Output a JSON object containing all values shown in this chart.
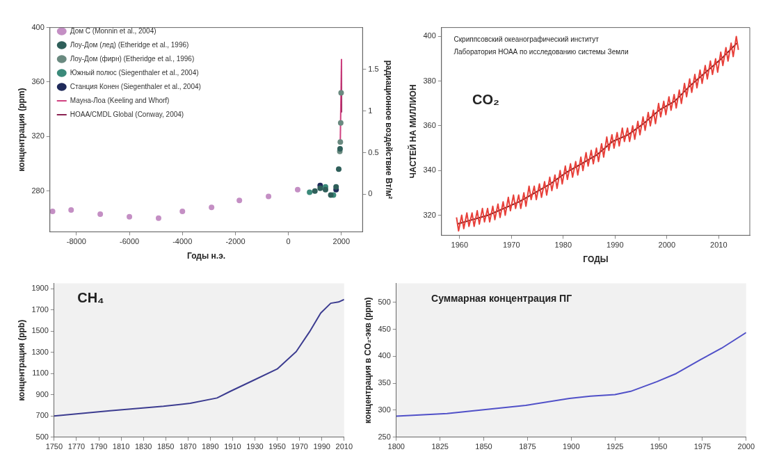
{
  "chart_data": [
    {
      "type": "line",
      "xlabel": "Годы н.э.",
      "ylabel": "концентрация (ppm)",
      "y2label": "радиационное воздействие Вт/м²",
      "xlim": [
        -9000,
        2800
      ],
      "xticks": [
        -8000,
        -6000,
        -4000,
        -2000,
        0,
        2000
      ],
      "ylim": [
        250,
        400
      ],
      "yticks": [
        280,
        320,
        360,
        400
      ],
      "y2lim": [
        -0.45,
        2.0
      ],
      "y2ticks": [
        0,
        0.5,
        1,
        1.5
      ],
      "legend": "top left",
      "series": [
        {
          "name": "Дом С (Monnin et al., 2004)",
          "type": "scatter",
          "marker": "circle",
          "color": "#c48fc4",
          "x": [
            -8900,
            -8200,
            -7100,
            -6000,
            -4900,
            -4000,
            -2900,
            -1850,
            -750,
            350
          ],
          "values": [
            265,
            266,
            263,
            261,
            260,
            265,
            268,
            273,
            276,
            281
          ]
        },
        {
          "name": "Лоу-Дом (лед) (Etheridge et al., 1996)",
          "type": "scatter",
          "marker": "circle",
          "color": "#2f5f5a",
          "x": [
            1000,
            1200,
            1400,
            1600,
            1800,
            1900,
            1950
          ],
          "values": [
            280,
            282,
            281,
            277,
            283,
            296,
            311
          ]
        },
        {
          "name": "Лоу-Дом (фирн) (Etheridge et al., 1996)",
          "type": "scatter",
          "marker": "circle",
          "color": "#6a8a80",
          "x": [
            1940,
            1960,
            1975,
            1990
          ],
          "values": [
            309,
            316,
            330,
            352
          ]
        },
        {
          "name": "Южный полюс (Siegenthaler et al., 2004)",
          "type": "scatter",
          "marker": "circle",
          "color": "#3b8a7a",
          "x": [
            800,
            1400,
            1700
          ],
          "values": [
            279,
            283,
            277
          ]
        },
        {
          "name": "Станция Конен (Siegenthaler et al., 2004)",
          "type": "scatter",
          "marker": "circle",
          "color": "#1f2a5a",
          "x": [
            1200,
            1800
          ],
          "values": [
            284,
            281
          ]
        },
        {
          "name": "Мауна-Лоа (Keeling and Whorf)",
          "type": "line",
          "marker": "none",
          "color": "#d04080",
          "x": [
            1958,
            2004
          ],
          "values": [
            315,
            377
          ]
        },
        {
          "name": "HOAA/CMDL Global (Conway, 2004)",
          "type": "line",
          "marker": "none",
          "color": "#8b2252",
          "x": [
            1980,
            2004
          ],
          "values": [
            338,
            376
          ]
        }
      ]
    },
    {
      "type": "line",
      "xlabel": "ГОДЫ",
      "ylabel": "ЧАСТЕЙ НА МИЛЛИОН",
      "xlim": [
        1956.5,
        2016
      ],
      "xticks": [
        1960,
        1970,
        1980,
        1990,
        2000,
        2010
      ],
      "ylim": [
        311,
        404
      ],
      "yticks": [
        320,
        340,
        360,
        380,
        400
      ],
      "annotations": [
        "Скриппсовский океанографический институт",
        "Лаборатория НОАА по исследованию системы Земли",
        "CO₂"
      ],
      "series": [
        {
          "type": "line",
          "marker": "none",
          "color": "#e8403a",
          "x": [
            1959.4,
            1959.8,
            1960.4,
            1960.8,
            1961.4,
            1961.8,
            1962.4,
            1962.8,
            1963.4,
            1963.8,
            1964.4,
            1964.8,
            1965.4,
            1965.8,
            1966.4,
            1966.8,
            1967.4,
            1967.8,
            1968.4,
            1968.8,
            1969.4,
            1969.8,
            1970.4,
            1970.8,
            1971.4,
            1971.8,
            1972.4,
            1972.8,
            1973.4,
            1973.8,
            1974.4,
            1974.8,
            1975.4,
            1975.8,
            1976.4,
            1976.8,
            1977.4,
            1977.8,
            1978.4,
            1978.8,
            1979.4,
            1979.8,
            1980.4,
            1980.8,
            1981.4,
            1981.8,
            1982.4,
            1982.8,
            1983.4,
            1983.8,
            1984.4,
            1984.8,
            1985.4,
            1985.8,
            1986.4,
            1986.8,
            1987.4,
            1987.8,
            1988.4,
            1988.8,
            1989.4,
            1989.8,
            1990.4,
            1990.8,
            1991.4,
            1991.8,
            1992.4,
            1992.8,
            1993.4,
            1993.8,
            1994.4,
            1994.8,
            1995.4,
            1995.8,
            1996.4,
            1996.8,
            1997.4,
            1997.8,
            1998.4,
            1998.8,
            1999.4,
            1999.8,
            2000.4,
            2000.8,
            2001.4,
            2001.8,
            2002.4,
            2002.8,
            2003.4,
            2003.8,
            2004.4,
            2004.8,
            2005.4,
            2005.8,
            2006.4,
            2006.8,
            2007.4,
            2007.8,
            2008.4,
            2008.8,
            2009.4,
            2009.8,
            2010.4,
            2010.8,
            2011.4,
            2011.8,
            2012.4,
            2012.8,
            2013.4,
            2013.8
          ],
          "values": [
            319,
            313,
            320,
            314,
            321,
            315,
            321,
            315,
            322,
            316,
            323,
            317,
            323,
            317,
            324,
            318,
            325,
            319,
            326,
            320,
            328,
            322,
            329,
            323,
            329,
            323,
            330,
            324,
            333,
            327,
            333,
            327,
            334,
            328,
            335,
            329,
            337,
            331,
            338,
            332,
            340,
            334,
            342,
            336,
            343,
            337,
            344,
            338,
            346,
            340,
            348,
            342,
            349,
            343,
            350,
            344,
            352,
            346,
            355,
            349,
            356,
            350,
            357,
            351,
            359,
            353,
            359,
            353,
            360,
            354,
            362,
            356,
            364,
            358,
            366,
            360,
            367,
            361,
            370,
            364,
            371,
            365,
            373,
            367,
            374,
            368,
            376,
            370,
            379,
            373,
            381,
            375,
            383,
            377,
            385,
            379,
            387,
            381,
            389,
            383,
            390,
            384,
            393,
            387,
            395,
            389,
            397,
            391,
            400,
            394
          ]
        },
        {
          "type": "line",
          "marker": "none",
          "color": "#7a1a1a",
          "x": [
            1959.5,
            1962.5,
            1965.5,
            1968.5,
            1971.5,
            1974.5,
            1977.5,
            1980.5,
            1983.5,
            1986.5,
            1989.5,
            1992.5,
            1995.5,
            1998.5,
            2001.5,
            2004.5,
            2007.5,
            2010.5,
            2013.5
          ],
          "values": [
            316,
            318,
            320,
            323,
            326,
            330,
            334,
            339,
            343,
            347,
            353,
            356,
            361,
            367,
            371,
            378,
            384,
            390,
            397
          ]
        }
      ]
    },
    {
      "type": "line",
      "ylabel": "концентрация (ppb)",
      "xlim": [
        1750,
        2010
      ],
      "xticks": [
        1750,
        1770,
        1790,
        1810,
        1830,
        1850,
        1870,
        1890,
        1910,
        1930,
        1950,
        1970,
        1990,
        2010
      ],
      "ylim": [
        500,
        1950
      ],
      "yticks": [
        500,
        700,
        900,
        1100,
        1300,
        1500,
        1700,
        1900
      ],
      "annotations": [
        "CH₄"
      ],
      "series": [
        {
          "type": "line",
          "marker": "none",
          "color": "#3c3c90",
          "x": [
            1750,
            1800,
            1848,
            1872,
            1896,
            1908,
            1929,
            1950,
            1967,
            1979,
            1989,
            1998,
            2005,
            2010
          ],
          "values": [
            700,
            750,
            792,
            820,
            870,
            933,
            1038,
            1143,
            1307,
            1494,
            1670,
            1763,
            1775,
            1798
          ]
        }
      ]
    },
    {
      "type": "line",
      "ylabel": "концентрация в CO₂-экв (ppm)",
      "xlim": [
        1800,
        2000
      ],
      "xticks": [
        1800,
        1825,
        1850,
        1875,
        1900,
        1925,
        1950,
        1975,
        2000
      ],
      "ylim": [
        250,
        535
      ],
      "yticks": [
        250,
        300,
        350,
        400,
        450,
        500
      ],
      "annotations": [
        "Суммарная концентрация ПГ"
      ],
      "series": [
        {
          "type": "line",
          "marker": "none",
          "color": "#5050c8",
          "x": [
            1800,
            1829,
            1850,
            1874,
            1899,
            1911,
            1925,
            1934,
            1949,
            1960,
            1974,
            1986,
            2000
          ],
          "values": [
            289,
            294,
            301,
            309,
            322,
            326,
            329,
            335,
            353,
            368,
            394,
            415,
            444
          ]
        }
      ]
    }
  ]
}
